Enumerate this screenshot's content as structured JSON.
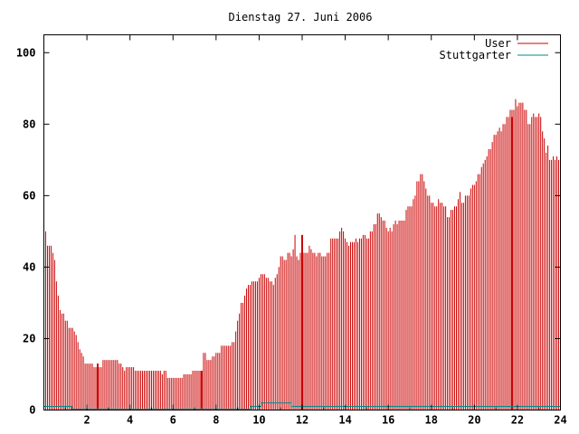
{
  "chart_data": {
    "type": "bar",
    "title": "Dienstag 27. Juni 2006",
    "xlabel": "",
    "ylabel": "",
    "xlim": [
      0,
      24
    ],
    "ylim": [
      0,
      105
    ],
    "x_ticks": [
      "2",
      "4",
      "6",
      "8",
      "10",
      "12",
      "14",
      "16",
      "18",
      "20",
      "22",
      "24"
    ],
    "y_ticks": [
      "0",
      "20",
      "40",
      "60",
      "80",
      "100"
    ],
    "grid": false,
    "legend_position": "top-right",
    "series": [
      {
        "name": "User",
        "color": "#cc0000",
        "interval_minutes": 5,
        "values": [
          48,
          50,
          46,
          46,
          46,
          44,
          42,
          36,
          32,
          28,
          27,
          27,
          25,
          25,
          23,
          23,
          23,
          22,
          21,
          19,
          17,
          16,
          15,
          13,
          13,
          13,
          13,
          13,
          12,
          12,
          12,
          12,
          12,
          14,
          14,
          14,
          14,
          14,
          14,
          14,
          14,
          14,
          13,
          13,
          12,
          11,
          12,
          12,
          12,
          12,
          12,
          11,
          11,
          11,
          11,
          11,
          11,
          11,
          11,
          11,
          11,
          11,
          11,
          11,
          11,
          11,
          10,
          11,
          11,
          9,
          9,
          9,
          9,
          9,
          9,
          9,
          9,
          9,
          10,
          10,
          10,
          10,
          10,
          11,
          11,
          11,
          11,
          11,
          11,
          16,
          16,
          14,
          14,
          14,
          15,
          15,
          16,
          16,
          16,
          18,
          18,
          18,
          18,
          18,
          18,
          19,
          19,
          22,
          25,
          27,
          30,
          30,
          32,
          34,
          35,
          35,
          36,
          36,
          36,
          36,
          37,
          38,
          38,
          38,
          37,
          37,
          36,
          36,
          35,
          37,
          38,
          40,
          43,
          43,
          42,
          42,
          44,
          44,
          43,
          45,
          49,
          43,
          42,
          44,
          44,
          44,
          44,
          44,
          46,
          45,
          44,
          44,
          43,
          44,
          44,
          43,
          43,
          43,
          44,
          44,
          48,
          48,
          48,
          48,
          48,
          50,
          51,
          50,
          48,
          47,
          46,
          47,
          47,
          47,
          48,
          47,
          48,
          48,
          49,
          49,
          48,
          48,
          50,
          50,
          52,
          52,
          55,
          55,
          54,
          53,
          53,
          51,
          50,
          51,
          50,
          52,
          53,
          52,
          53,
          53,
          53,
          53,
          56,
          57,
          57,
          57,
          59,
          60,
          64,
          64,
          66,
          66,
          64,
          62,
          60,
          60,
          58,
          58,
          57,
          57,
          59,
          58,
          58,
          57,
          57,
          54,
          54,
          56,
          56,
          57,
          57,
          59,
          61,
          58,
          58,
          60,
          60,
          60,
          62,
          63,
          63,
          64,
          66,
          66,
          68,
          69,
          70,
          71,
          73,
          73,
          75,
          77,
          77,
          78,
          79,
          78,
          80,
          80,
          82,
          82,
          84,
          84,
          84,
          87,
          85,
          86,
          86,
          86,
          84,
          84,
          80,
          80,
          82,
          83,
          82,
          82,
          83,
          82,
          78,
          76,
          72,
          74,
          70,
          70,
          71,
          70,
          71,
          70
        ],
        "spikes": [
          {
            "x": 2.5,
            "value": 13
          },
          {
            "x": 7.33,
            "value": 11
          },
          {
            "x": 12.0,
            "value": 49
          },
          {
            "x": 21.75,
            "value": 82
          }
        ]
      },
      {
        "name": "Stuttgarter",
        "color": "#008b8b",
        "points": [
          [
            0,
            1
          ],
          [
            1.3,
            1
          ],
          [
            1.3,
            0
          ],
          [
            9.6,
            0
          ],
          [
            9.6,
            1
          ],
          [
            10.1,
            1
          ],
          [
            10.1,
            2
          ],
          [
            11.5,
            2
          ],
          [
            11.5,
            1
          ],
          [
            12.0,
            1
          ],
          [
            24,
            1
          ]
        ]
      }
    ]
  }
}
